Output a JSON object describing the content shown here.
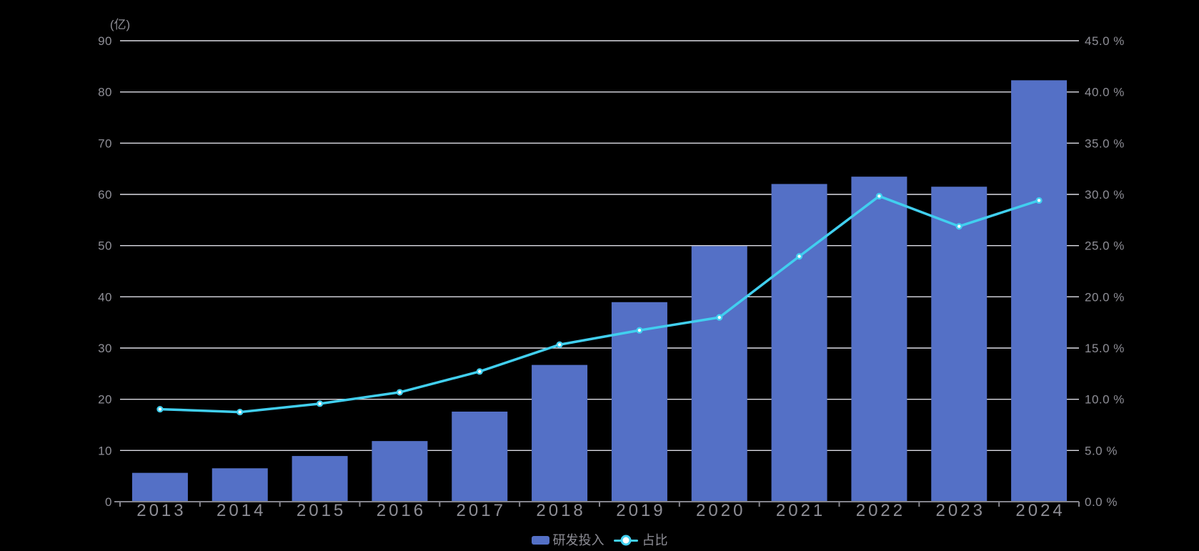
{
  "chart": {
    "style": {
      "background": "#000000",
      "bar_color": "#5470C6",
      "line_color": "#41CFEF",
      "marker_fill": "#FFFFFF",
      "grid_color": "#DCDCE4",
      "axis_color": "#84848C",
      "label_color": "#8E8E96"
    }
  },
  "chart_data": {
    "type": "combo",
    "categories": [
      "2013",
      "2014",
      "2015",
      "2016",
      "2017",
      "2018",
      "2019",
      "2020",
      "2021",
      "2022",
      "2023",
      "2024"
    ],
    "series": [
      {
        "name": "研发投入",
        "type": "bar",
        "y_axis": "left",
        "unit": "亿",
        "values": [
          5.63,
          6.52,
          8.92,
          11.84,
          17.59,
          26.7,
          38.96,
          49.89,
          62.03,
          63.46,
          61.5,
          82.28
        ]
      },
      {
        "name": "占比",
        "type": "line",
        "y_axis": "right",
        "unit": "%",
        "values": [
          9.03,
          8.75,
          9.57,
          10.68,
          12.71,
          15.33,
          16.73,
          17.99,
          23.95,
          29.83,
          26.88,
          29.41
        ]
      }
    ],
    "left_axis": {
      "label": "(亿)",
      "min": 0,
      "max": 90,
      "step": 10,
      "ticks": [
        "0",
        "10",
        "20",
        "30",
        "40",
        "50",
        "60",
        "70",
        "80",
        "90"
      ]
    },
    "right_axis": {
      "min": 0,
      "max": 45,
      "step": 5,
      "ticks": [
        "0.0 %",
        "5.0 %",
        "10.0 %",
        "15.0 %",
        "20.0 %",
        "25.0 %",
        "30.0 %",
        "35.0 %",
        "40.0 %",
        "45.0 %"
      ]
    },
    "grid": true,
    "legend_position": "bottom"
  }
}
